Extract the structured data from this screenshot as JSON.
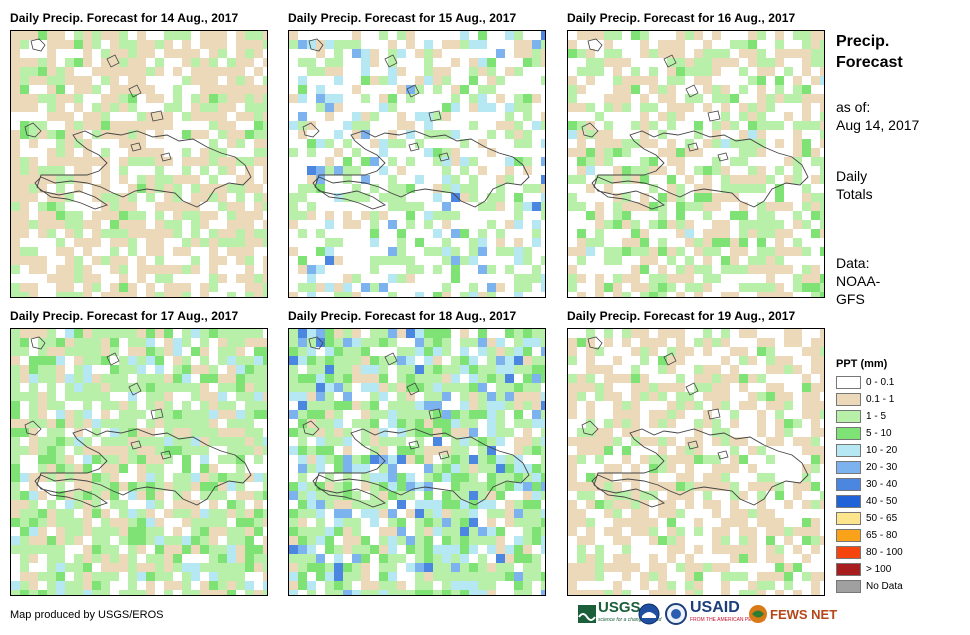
{
  "panels": [
    {
      "title": "Daily Precip. Forecast for 14 Aug., 2017"
    },
    {
      "title": "Daily Precip. Forecast for 15 Aug., 2017"
    },
    {
      "title": "Daily Precip. Forecast for 16 Aug., 2017"
    },
    {
      "title": "Daily Precip. Forecast for 17 Aug., 2017"
    },
    {
      "title": "Daily Precip. Forecast for 18 Aug., 2017"
    },
    {
      "title": "Daily Precip. Forecast for 19 Aug., 2017"
    }
  ],
  "sidebar": {
    "title_line1": "Precip.",
    "title_line2": "Forecast",
    "asof_line1": "as of:",
    "asof_line2": "Aug 14, 2017",
    "totals_line1": "Daily",
    "totals_line2": "Totals",
    "data_line1": "Data:",
    "data_line2": "NOAA-",
    "data_line3": "GFS"
  },
  "legend": {
    "title": "PPT (mm)",
    "items": [
      {
        "label": "0 - 0.1",
        "color": "#ffffff"
      },
      {
        "label": "0.1 - 1",
        "color": "#ecd9b9"
      },
      {
        "label": "1 - 5",
        "color": "#b9f0a9"
      },
      {
        "label": "5 - 10",
        "color": "#7ee374"
      },
      {
        "label": "10 - 20",
        "color": "#b5e8f3"
      },
      {
        "label": "20 - 30",
        "color": "#7cb3ee"
      },
      {
        "label": "30 - 40",
        "color": "#4b86e0"
      },
      {
        "label": "40 - 50",
        "color": "#2062d8"
      },
      {
        "label": "50 - 65",
        "color": "#fde58e"
      },
      {
        "label": "65 - 80",
        "color": "#f9a21a"
      },
      {
        "label": "80 - 100",
        "color": "#f5440e"
      },
      {
        "label": "> 100",
        "color": "#a81e1e"
      },
      {
        "label": "No Data",
        "color": "#a0a0a0"
      }
    ]
  },
  "credit": "Map produced by USGS/EROS",
  "logos": {
    "usgs": "USGS",
    "usgs_tagline": "science for a changing world",
    "usaid": "USAID",
    "usaid_tagline": "FROM THE AMERICAN PEOPLE",
    "fewsnet": "FEWS NET"
  }
}
